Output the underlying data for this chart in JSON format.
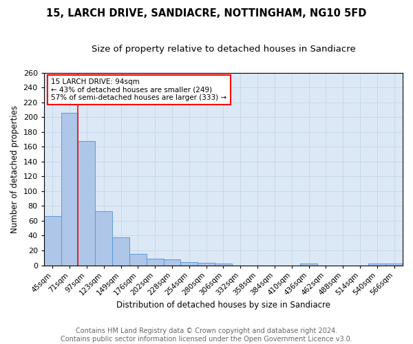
{
  "title1": "15, LARCH DRIVE, SANDIACRE, NOTTINGHAM, NG10 5FD",
  "title2": "Size of property relative to detached houses in Sandiacre",
  "xlabel": "Distribution of detached houses by size in Sandiacre",
  "ylabel": "Number of detached properties",
  "categories": [
    "45sqm",
    "71sqm",
    "97sqm",
    "123sqm",
    "149sqm",
    "176sqm",
    "202sqm",
    "228sqm",
    "254sqm",
    "280sqm",
    "306sqm",
    "332sqm",
    "358sqm",
    "384sqm",
    "410sqm",
    "436sqm",
    "462sqm",
    "488sqm",
    "514sqm",
    "540sqm",
    "566sqm"
  ],
  "values": [
    66,
    206,
    168,
    73,
    38,
    15,
    9,
    8,
    4,
    3,
    2,
    0,
    0,
    0,
    0,
    2,
    0,
    0,
    0,
    2,
    2
  ],
  "bar_color": "#aec6e8",
  "bar_edge_color": "#5b9bd5",
  "grid_color": "#c8d8e8",
  "background_color": "#dce8f5",
  "red_line_x": 2.0,
  "annotation_text": "15 LARCH DRIVE: 94sqm\n← 43% of detached houses are smaller (249)\n57% of semi-detached houses are larger (333) →",
  "annotation_box_color": "white",
  "annotation_box_edge_color": "red",
  "ylim": [
    0,
    260
  ],
  "yticks": [
    0,
    20,
    40,
    60,
    80,
    100,
    120,
    140,
    160,
    180,
    200,
    220,
    240,
    260
  ],
  "footer_text": "Contains HM Land Registry data © Crown copyright and database right 2024.\nContains public sector information licensed under the Open Government Licence v3.0.",
  "title1_fontsize": 10.5,
  "title2_fontsize": 9.5,
  "xlabel_fontsize": 8.5,
  "ylabel_fontsize": 8.5,
  "footer_fontsize": 7,
  "tick_fontsize": 7.5,
  "ytick_fontsize": 8
}
